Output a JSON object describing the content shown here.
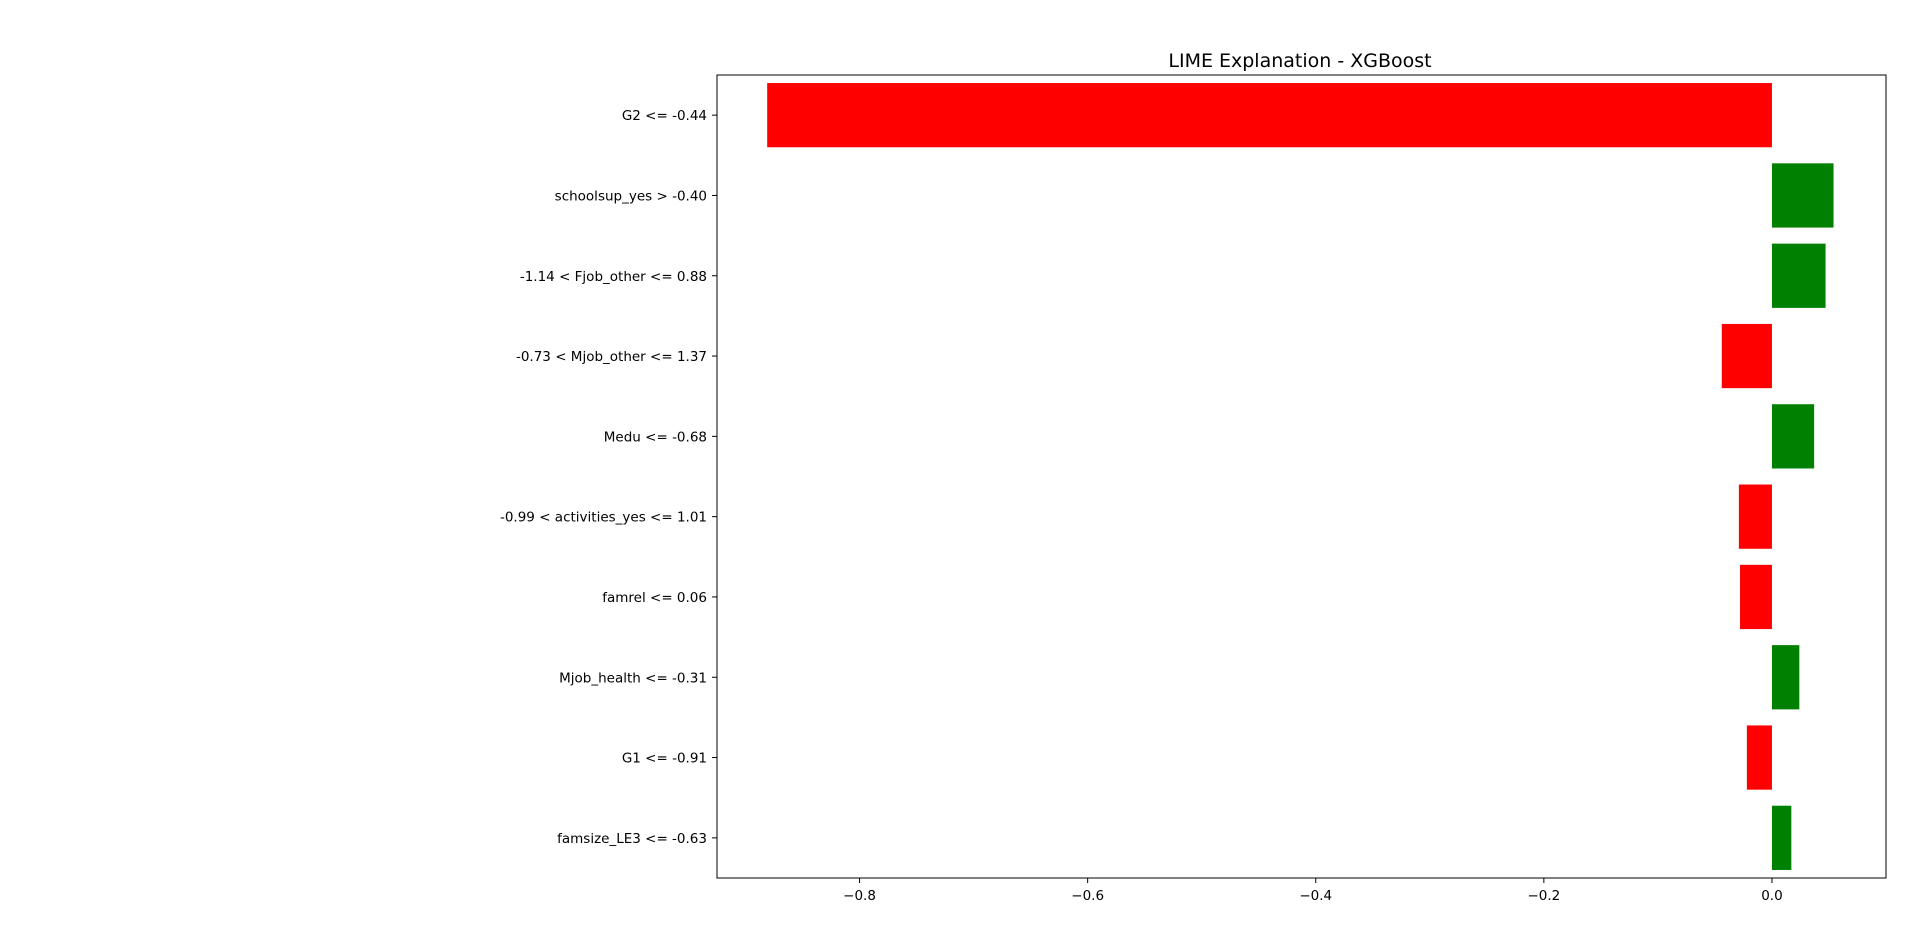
{
  "chart_data": {
    "type": "bar",
    "orientation": "horizontal",
    "title": "LIME Explanation - XGBoost",
    "xlabel": "",
    "ylabel": "",
    "xlim": [
      -0.925,
      0.1
    ],
    "x_ticks": [
      -0.8,
      -0.6,
      -0.4,
      -0.2,
      0.0
    ],
    "x_tick_labels": [
      "−0.8",
      "−0.6",
      "−0.4",
      "−0.2",
      "0.0"
    ],
    "grid": false,
    "legend": "none",
    "colors": {
      "positive": "#008000",
      "negative": "#ff0000"
    },
    "categories": [
      "G2 <= -0.44",
      "schoolsup_yes > -0.40",
      "-1.14 < Fjob_other <= 0.88",
      "-0.73 < Mjob_other <= 1.37",
      "Medu <= -0.68",
      "-0.99 < activities_yes <= 1.01",
      "famrel <= 0.06",
      "Mjob_health <= -0.31",
      "G1 <= -0.91",
      "famsize_LE3 <= -0.63"
    ],
    "values": [
      -0.881,
      0.054,
      0.047,
      -0.044,
      0.037,
      -0.029,
      -0.028,
      0.024,
      -0.022,
      0.017
    ]
  }
}
